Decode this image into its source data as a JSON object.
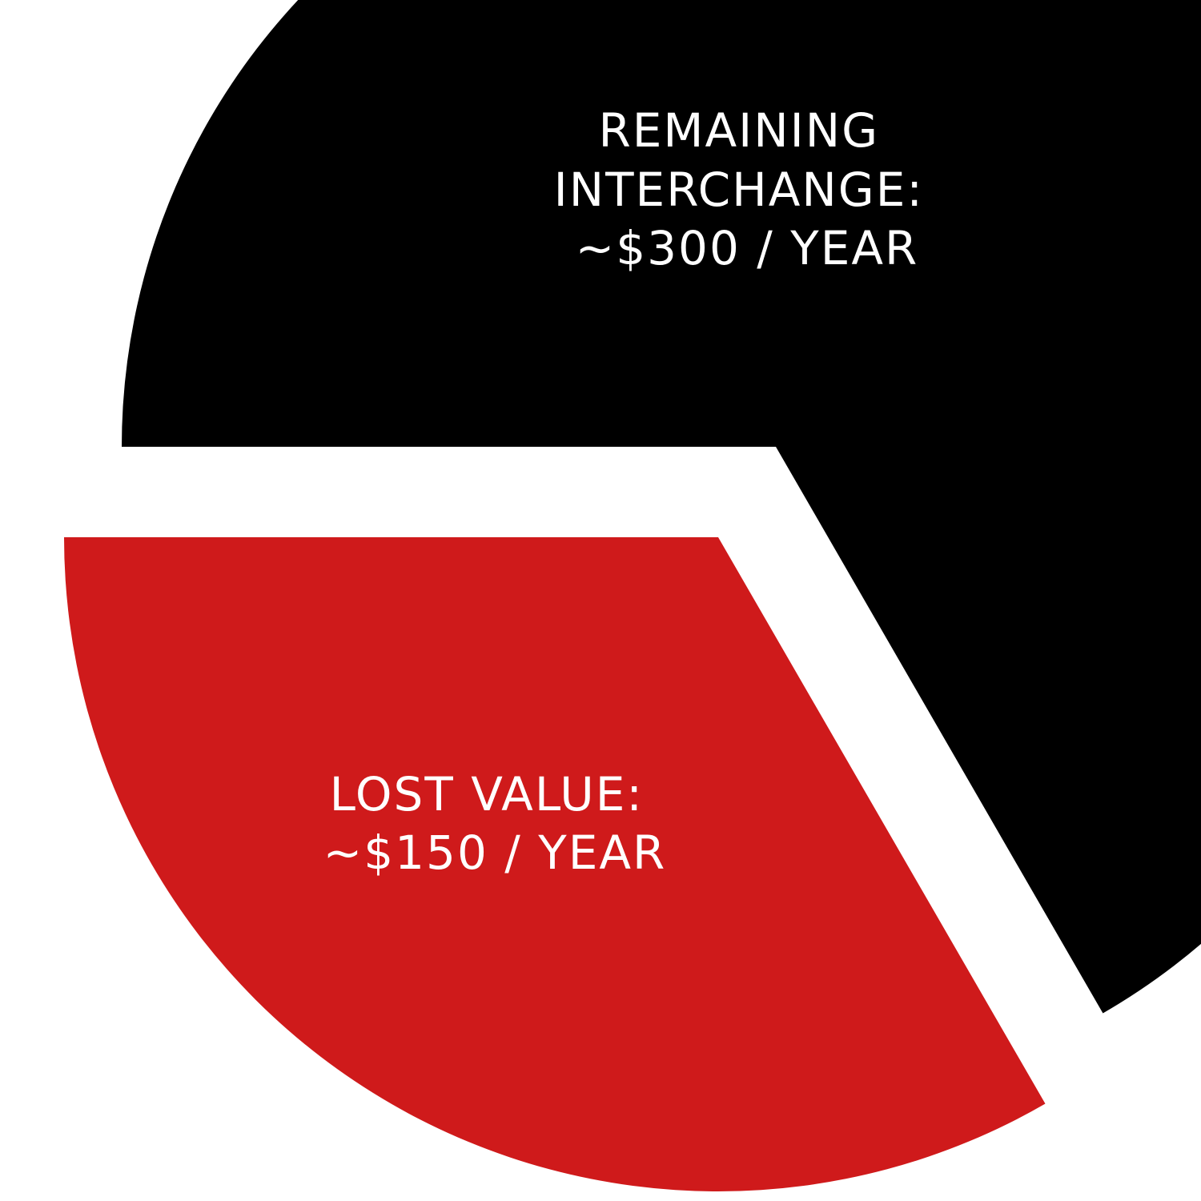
{
  "chart_data": {
    "type": "pie",
    "exploded": true,
    "slices": [
      {
        "label_lines": [
          "REMAINING",
          "INTERCHANGE:",
          "~$300 / YEAR"
        ],
        "value": 300,
        "color": "#000000"
      },
      {
        "label_lines": [
          "LOST VALUE:",
          "~$150 / YEAR"
        ],
        "value": 150,
        "color": "#cf1a1b"
      }
    ]
  }
}
